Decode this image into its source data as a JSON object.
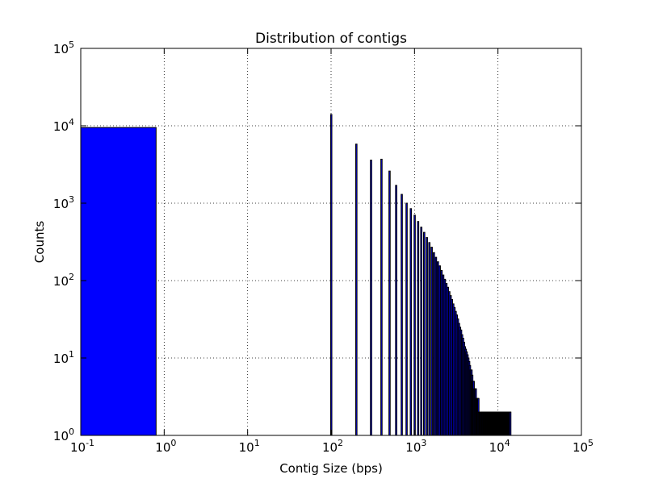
{
  "chart_data": {
    "type": "bar",
    "title": "Distribution of contigs",
    "xlabel": "Contig Size (bps)",
    "ylabel": "Counts",
    "xscale": "log",
    "yscale": "log",
    "xlim": [
      0.1,
      100000
    ],
    "ylim": [
      1,
      100000
    ],
    "grid": true,
    "x_ticks": [
      {
        "base": "10",
        "exp": "-1",
        "value": 0.1
      },
      {
        "base": "10",
        "exp": "0",
        "value": 1
      },
      {
        "base": "10",
        "exp": "1",
        "value": 10
      },
      {
        "base": "10",
        "exp": "2",
        "value": 100
      },
      {
        "base": "10",
        "exp": "3",
        "value": 1000
      },
      {
        "base": "10",
        "exp": "4",
        "value": 10000
      },
      {
        "base": "10",
        "exp": "5",
        "value": 100000
      }
    ],
    "y_ticks": [
      {
        "base": "10",
        "exp": "0",
        "value": 1
      },
      {
        "base": "10",
        "exp": "1",
        "value": 10
      },
      {
        "base": "10",
        "exp": "2",
        "value": 100
      },
      {
        "base": "10",
        "exp": "3",
        "value": 1000
      },
      {
        "base": "10",
        "exp": "4",
        "value": 10000
      },
      {
        "base": "10",
        "exp": "5",
        "value": 100000
      }
    ],
    "colors": {
      "bar_fill": "#0000ff",
      "bar_edge": "#000000",
      "grid": "#000000",
      "axes": "#000000"
    },
    "wide_bar": {
      "x_start": 0.1,
      "x_end": 0.8,
      "value": 9500
    },
    "bins_x": [
      100,
      200,
      300,
      400,
      500,
      600,
      700,
      800,
      900,
      1000,
      1100,
      1200,
      1300,
      1400,
      1500,
      1600,
      1700,
      1800,
      1900,
      2000,
      2100,
      2200,
      2300,
      2400,
      2500,
      2600,
      2700,
      2800,
      2900,
      3000,
      3100,
      3200,
      3300,
      3400,
      3500,
      3600,
      3700,
      3800,
      3900,
      4000,
      4100,
      4200,
      4300,
      4400,
      4500,
      4600,
      4700,
      4800,
      4900,
      5000,
      5100,
      5200,
      5300,
      5400,
      5500,
      5600,
      5700,
      5800,
      5900,
      6000,
      6100,
      6200,
      6300,
      6400,
      6500,
      6600,
      6700,
      6800,
      6900,
      7000,
      7100,
      7200,
      7300,
      7400,
      7500,
      7600,
      7700,
      7800,
      7900,
      8000,
      8100,
      8200,
      8300,
      8400,
      8500,
      8600,
      8700,
      8800,
      8900,
      9000,
      9100,
      9200,
      9300,
      9400,
      9500,
      9600,
      9700,
      9800,
      9900,
      10000,
      10100,
      10200,
      10300,
      10400,
      10500,
      10600,
      10700,
      10800,
      10900,
      11000,
      11100,
      11200,
      11300,
      11400,
      11500,
      11600,
      11700,
      11800,
      11900,
      12000,
      12100,
      12200,
      12300,
      12400,
      12500,
      12600,
      12700,
      12800,
      12900,
      13000,
      13100,
      13200,
      13300,
      13400,
      13500,
      13600,
      13700,
      13800,
      13900,
      14000
    ],
    "bins_counts": [
      14000,
      5800,
      3600,
      3700,
      2600,
      1700,
      1300,
      1000,
      850,
      700,
      580,
      490,
      420,
      360,
      310,
      270,
      230,
      200,
      175,
      155,
      135,
      118,
      104,
      92,
      82,
      72,
      64,
      57,
      50,
      45,
      40,
      36,
      32,
      28,
      25,
      23,
      20,
      18,
      16,
      14,
      13,
      12,
      11,
      10,
      9,
      8,
      7,
      7,
      6,
      5,
      5,
      4,
      4,
      4,
      3,
      3,
      3,
      3,
      2,
      2,
      2,
      2,
      2,
      2,
      2,
      2,
      2,
      2,
      2,
      2,
      2,
      2,
      2,
      2,
      2,
      2,
      2,
      2,
      2,
      2,
      2,
      2,
      2,
      2,
      2,
      2,
      2,
      2,
      2,
      2,
      2,
      2,
      2,
      2,
      2,
      2,
      2,
      2,
      2,
      2,
      2,
      2,
      2,
      2,
      2,
      2,
      2,
      2,
      2,
      2,
      2,
      2,
      2,
      2,
      2,
      2,
      2,
      2,
      2,
      2,
      2,
      2,
      2,
      2,
      2,
      2,
      2,
      2,
      2,
      2,
      2,
      2,
      2,
      2,
      2,
      2,
      2,
      2,
      2,
      2
    ]
  }
}
